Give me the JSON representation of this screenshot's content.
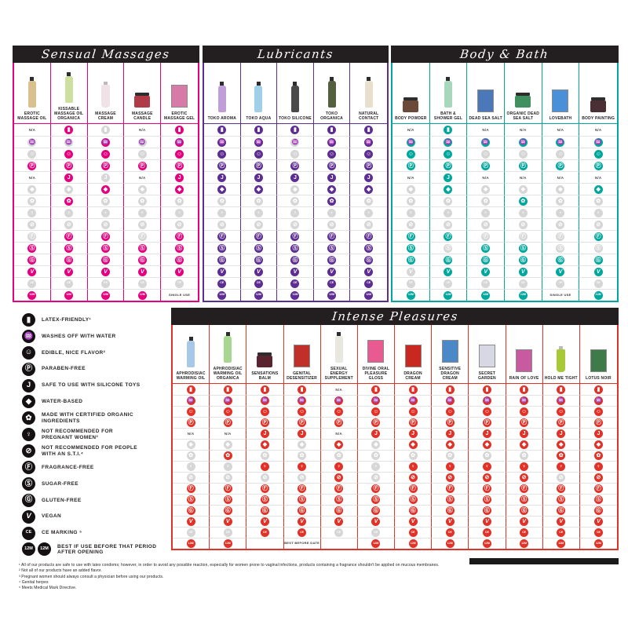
{
  "colors": {
    "pink": "#e6007e",
    "purple": "#5e2d91",
    "teal": "#00a79d",
    "red": "#e23127",
    "gray_icon": "#d6d6d6",
    "header_black": "#231f20"
  },
  "labels": {
    "na": "N/A"
  },
  "attributes": [
    {
      "id": "latex-friendly",
      "glyph": "▮",
      "label": "LATEX-FRIENDLY¹"
    },
    {
      "id": "washes-off-with-water",
      "glyph": "♒",
      "label": "WASHES OFF WITH WATER"
    },
    {
      "id": "edible-nice-flavor",
      "glyph": "☺",
      "label": "EDIBLE, NICE FLAVOR²"
    },
    {
      "id": "paraben-free",
      "glyph": "Ⓟ",
      "label": "PARABEN-FREE"
    },
    {
      "id": "safe-with-silicone-toys",
      "glyph": "J",
      "label": "SAFE TO USE WITH SILICONE TOYS"
    },
    {
      "id": "water-based",
      "glyph": "◆",
      "label": "WATER-BASED"
    },
    {
      "id": "certified-organic",
      "glyph": "✿",
      "label": "MADE WITH CERTIFIED ORGANIC INGREDIENTS"
    },
    {
      "id": "not-recommended-pregnant",
      "glyph": "♀",
      "label": "NOT RECOMMENDED FOR PREGNANT WOMEN³"
    },
    {
      "id": "not-recommended-sti",
      "glyph": "⊘",
      "label": "NOT RECOMMENDED FOR PEOPLE WITH AN S.T.I.⁴"
    },
    {
      "id": "fragrance-free",
      "glyph": "Ⓕ",
      "label": "FRAGRANCE-FREE"
    },
    {
      "id": "sugar-free",
      "glyph": "Ⓢ",
      "label": "SUGAR-FREE"
    },
    {
      "id": "gluten-free",
      "glyph": "Ⓖ",
      "label": "GLUTEN-FREE"
    },
    {
      "id": "vegan",
      "glyph": "V",
      "label": "VEGAN"
    },
    {
      "id": "ce-marking",
      "glyph": "CE",
      "label": "CE MARKING ⁵"
    },
    {
      "id": "period-after-opening",
      "glyph": "12M",
      "glyph2": "12M",
      "label": "BEST IF USE BEFORE THAT PERIOD AFTER OPENING"
    }
  ],
  "sections": [
    {
      "title": "Sensual Massages",
      "accent": "#e6007e",
      "products": [
        {
          "name": "EROTIC MASSAGE OIL",
          "thumb": "bottle",
          "color": "#d8c18f"
        },
        {
          "name": "KISSABLE MASSAGE OIL ORGANICA",
          "thumb": "bottle",
          "color": "#cfdf9f"
        },
        {
          "name": "MASSAGE CREAM",
          "thumb": "tube",
          "color": "#efe3e7"
        },
        {
          "name": "MASSAGE CANDLE",
          "thumb": "jar",
          "color": "#b03a45"
        },
        {
          "name": "EROTIC MASSAGE GEL",
          "thumb": "box",
          "color": "#d87aa8"
        }
      ],
      "matrix": [
        [
          "NA",
          "Y",
          "N",
          "NA",
          "Y"
        ],
        [
          "N",
          "N",
          "Y",
          "N",
          "Y"
        ],
        [
          "N",
          "Y",
          "Y",
          "N",
          "Y"
        ],
        [
          "Y",
          "Y",
          "Y",
          "Y",
          "Y"
        ],
        [
          "NA",
          "Y",
          "N",
          "NA",
          "Y"
        ],
        [
          "N",
          "N",
          "Y",
          "N",
          "Y"
        ],
        [
          "N",
          "Y",
          "N",
          "N",
          "N"
        ],
        [
          "N",
          "N",
          "N",
          "N",
          "N"
        ],
        [
          "N",
          "N",
          "N",
          "N",
          "N"
        ],
        [
          "N",
          "Y",
          "Y",
          "N",
          "Y"
        ],
        [
          "Y",
          "Y",
          "Y",
          "Y",
          "Y"
        ],
        [
          "Y",
          "Y",
          "Y",
          "Y",
          "Y"
        ],
        [
          "Y",
          "Y",
          "Y",
          "Y",
          "Y"
        ],
        [
          "N",
          "N",
          "N",
          "N",
          "N"
        ],
        [
          "Y",
          "Y",
          "Y",
          "Y",
          "SINGLE USE"
        ]
      ]
    },
    {
      "title": "Lubricants",
      "accent": "#5e2d91",
      "products": [
        {
          "name": "TOKO AROMA",
          "thumb": "bottle",
          "color": "#c09fd8"
        },
        {
          "name": "TOKO AQUA",
          "thumb": "bottle",
          "color": "#9fd0e8"
        },
        {
          "name": "TOKO SILICONE",
          "thumb": "bottle",
          "color": "#4a4a4a"
        },
        {
          "name": "TOKO ORGANICA",
          "thumb": "bottle",
          "color": "#54603f"
        },
        {
          "name": "NATURAL CONTACT",
          "thumb": "bottle",
          "color": "#e8e0cd"
        }
      ],
      "matrix": [
        [
          "Y",
          "Y",
          "Y",
          "Y",
          "Y"
        ],
        [
          "Y",
          "Y",
          "N",
          "Y",
          "Y"
        ],
        [
          "Y",
          "Y",
          "N",
          "Y",
          "Y"
        ],
        [
          "Y",
          "Y",
          "Y",
          "Y",
          "Y"
        ],
        [
          "Y",
          "Y",
          "Y",
          "Y",
          "Y"
        ],
        [
          "Y",
          "Y",
          "N",
          "Y",
          "Y"
        ],
        [
          "N",
          "N",
          "N",
          "Y",
          "N"
        ],
        [
          "N",
          "N",
          "N",
          "N",
          "N"
        ],
        [
          "N",
          "N",
          "N",
          "N",
          "N"
        ],
        [
          "Y",
          "Y",
          "Y",
          "Y",
          "Y"
        ],
        [
          "Y",
          "Y",
          "Y",
          "Y",
          "Y"
        ],
        [
          "Y",
          "Y",
          "Y",
          "Y",
          "Y"
        ],
        [
          "Y",
          "Y",
          "Y",
          "Y",
          "Y"
        ],
        [
          "Y",
          "Y",
          "Y",
          "Y",
          "Y"
        ],
        [
          "Y",
          "Y",
          "Y",
          "Y",
          "Y"
        ]
      ]
    },
    {
      "title": "Body & Bath",
      "accent": "#00a79d",
      "products": [
        {
          "name": "BODY POWDER",
          "thumb": "jar",
          "color": "#6b4a3a"
        },
        {
          "name": "BATH & SHOWER GEL",
          "thumb": "bottle",
          "color": "#a8d8bc"
        },
        {
          "name": "DEAD SEA SALT",
          "thumb": "box",
          "color": "#4a78b8"
        },
        {
          "name": "ORGANIC DEAD SEA SALT",
          "thumb": "jar",
          "color": "#3f8f5f"
        },
        {
          "name": "LOVEBATH",
          "thumb": "box",
          "color": "#4a90d8"
        },
        {
          "name": "BODY PAINTING",
          "thumb": "jar",
          "color": "#4a3034"
        }
      ],
      "matrix": [
        [
          "NA",
          "Y",
          "NA",
          "NA",
          "NA",
          "NA"
        ],
        [
          "Y",
          "Y",
          "Y",
          "Y",
          "Y",
          "Y"
        ],
        [
          "Y",
          "Y",
          "N",
          "N",
          "N",
          "Y"
        ],
        [
          "Y",
          "Y",
          "Y",
          "Y",
          "Y",
          "Y"
        ],
        [
          "NA",
          "Y",
          "NA",
          "NA",
          "NA",
          "NA"
        ],
        [
          "N",
          "Y",
          "N",
          "N",
          "N",
          "Y"
        ],
        [
          "N",
          "N",
          "N",
          "Y",
          "N",
          "N"
        ],
        [
          "N",
          "N",
          "N",
          "N",
          "N",
          "N"
        ],
        [
          "N",
          "N",
          "N",
          "N",
          "N",
          "N"
        ],
        [
          "Y",
          "Y",
          "N",
          "N",
          "N",
          "Y"
        ],
        [
          "Y",
          "N",
          "Y",
          "Y",
          "N",
          "N"
        ],
        [
          "Y",
          "Y",
          "Y",
          "Y",
          "Y",
          "Y"
        ],
        [
          "N",
          "Y",
          "Y",
          "Y",
          "Y",
          "Y"
        ],
        [
          "N",
          "N",
          "N",
          "N",
          "N",
          "N"
        ],
        [
          "Y",
          "Y",
          "Y",
          "Y",
          "SINGLE USE",
          "Y"
        ]
      ]
    },
    {
      "title": "Intense Pleasures",
      "accent": "#e23127",
      "products": [
        {
          "name": "APHRODISIAC WARMING OIL",
          "thumb": "bottle",
          "color": "#a8c8e8"
        },
        {
          "name": "APHRODISIAC WARMING OIL ORGANICA",
          "thumb": "bottle",
          "color": "#a8d890"
        },
        {
          "name": "SENSATIONS BALM",
          "thumb": "jar",
          "color": "#5a2330"
        },
        {
          "name": "GENITAL DESENSITIZER",
          "thumb": "box",
          "color": "#c03028"
        },
        {
          "name": "SEXUAL ENERGY SUPPLEMENT",
          "thumb": "bottle",
          "color": "#e8e8e0"
        },
        {
          "name": "DIVINE ORAL PLEASURE GLOSS",
          "thumb": "box",
          "color": "#e85a90"
        },
        {
          "name": "DRAGON CREAM",
          "thumb": "box",
          "color": "#c82820"
        },
        {
          "name": "SENSITIVE DRAGON CREAM",
          "thumb": "box",
          "color": "#4a88c8"
        },
        {
          "name": "SECRET GARDEN",
          "thumb": "box",
          "color": "#d8d8e4"
        },
        {
          "name": "RAIN OF LOVE",
          "thumb": "box",
          "color": "#c85aa0"
        },
        {
          "name": "HOLD ME TIGHT",
          "thumb": "tube",
          "color": "#a8c838"
        },
        {
          "name": "LOTUS NOIR",
          "thumb": "box",
          "color": "#3f7a4a"
        }
      ],
      "matrix": [
        [
          "Y",
          "Y",
          "Y",
          "Y",
          "NA",
          "Y",
          "Y",
          "Y",
          "Y",
          "Y",
          "Y",
          "Y"
        ],
        [
          "Y",
          "Y",
          "Y",
          "Y",
          "Y",
          "Y",
          "Y",
          "Y",
          "Y",
          "Y",
          "Y",
          "Y"
        ],
        [
          "Y",
          "Y",
          "Y",
          "Y",
          "Y",
          "Y",
          "Y",
          "Y",
          "Y",
          "Y",
          "Y",
          "Y"
        ],
        [
          "Y",
          "Y",
          "Y",
          "Y",
          "Y",
          "Y",
          "Y",
          "Y",
          "Y",
          "Y",
          "Y",
          "Y"
        ],
        [
          "NA",
          "NA",
          "Y",
          "Y",
          "NA",
          "Y",
          "Y",
          "Y",
          "Y",
          "Y",
          "Y",
          "Y"
        ],
        [
          "N",
          "N",
          "Y",
          "N",
          "Y",
          "N",
          "Y",
          "Y",
          "Y",
          "Y",
          "Y",
          "Y"
        ],
        [
          "N",
          "Y",
          "N",
          "N",
          "N",
          "N",
          "N",
          "N",
          "N",
          "N",
          "Y",
          "Y"
        ],
        [
          "N",
          "N",
          "Y",
          "Y",
          "Y",
          "N",
          "Y",
          "Y",
          "Y",
          "Y",
          "Y",
          "Y"
        ],
        [
          "N",
          "N",
          "N",
          "N",
          "Y",
          "N",
          "Y",
          "Y",
          "Y",
          "Y",
          "N",
          "Y"
        ],
        [
          "Y",
          "Y",
          "Y",
          "Y",
          "Y",
          "Y",
          "Y",
          "Y",
          "Y",
          "Y",
          "Y",
          "Y"
        ],
        [
          "Y",
          "Y",
          "Y",
          "Y",
          "Y",
          "Y",
          "Y",
          "Y",
          "Y",
          "Y",
          "Y",
          "Y"
        ],
        [
          "Y",
          "Y",
          "Y",
          "Y",
          "Y",
          "Y",
          "Y",
          "Y",
          "Y",
          "Y",
          "Y",
          "Y"
        ],
        [
          "Y",
          "Y",
          "Y",
          "Y",
          "Y",
          "Y",
          "Y",
          "Y",
          "Y",
          "Y",
          "Y",
          "Y"
        ],
        [
          "N",
          "N",
          "Y",
          "Y",
          "N",
          "N",
          "Y",
          "Y",
          "Y",
          "Y",
          "Y",
          "Y"
        ],
        [
          "Y",
          "Y",
          "",
          "BEST BEFORE DATE",
          "",
          "Y",
          "Y",
          "Y",
          "Y",
          "Y",
          "Y",
          "Y"
        ]
      ]
    }
  ],
  "footnotes": [
    "¹ All of our products are safe to use with latex condoms; however, in order to avoid any possible reaction, especially for women prone to vaginal infections, products containing a fragrance shouldn't be applied on mucous membranes.",
    "² Not all of our products have an added flavor.",
    "³ Pregnant women should always consult a physician before using our products.",
    "⁴ Genital herpes",
    "⁵ Meets Medical Mark Directive."
  ]
}
